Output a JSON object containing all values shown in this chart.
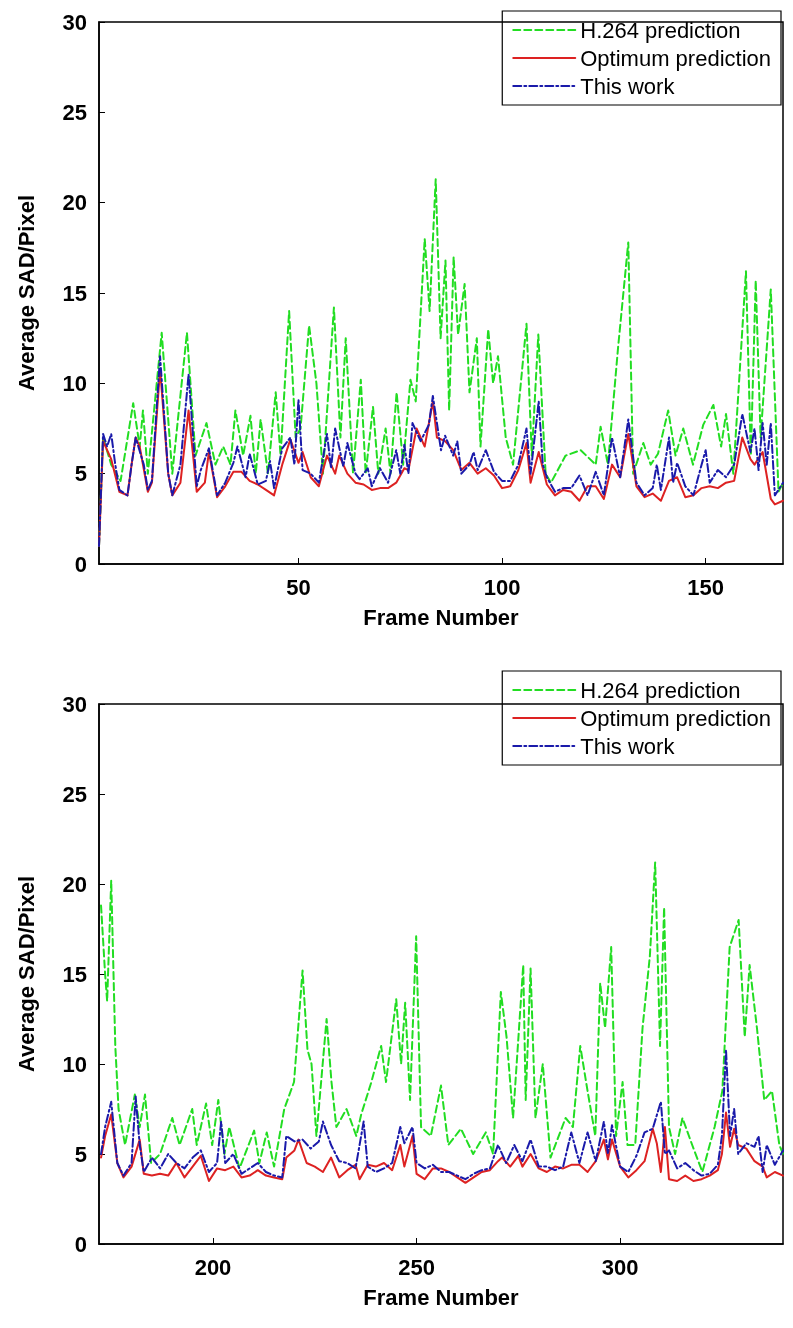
{
  "chart_data": [
    {
      "type": "line",
      "xlabel": "Frame Number",
      "ylabel": "Average SAD/Pixel",
      "xlim": [
        1,
        169
      ],
      "xticks": [
        50,
        100,
        150
      ],
      "ylim": [
        0,
        30
      ],
      "yticks": [
        0,
        5,
        10,
        15,
        20,
        25,
        30
      ],
      "grid": false,
      "legend": "top right",
      "marker": "none",
      "series": [
        {
          "name": "H.264 prediction",
          "color": "#22dd22",
          "line_style": "dashed",
          "x": [
            1,
            2,
            4,
            6.3,
            9.4,
            11,
            11.8,
            13,
            16.4,
            19,
            22.6,
            24.7,
            27.4,
            29.6,
            31.5,
            33.3,
            34.5,
            36.4,
            38.2,
            39.5,
            40.7,
            42.5,
            44.4,
            45.6,
            47.7,
            49.3,
            50.5,
            52.6,
            54.4,
            56,
            58.7,
            60.3,
            61.6,
            63.4,
            65.3,
            66.5,
            68.3,
            69.6,
            71.4,
            72.6,
            74.1,
            75.7,
            77.5,
            78.8,
            81,
            82.2,
            83.7,
            84.9,
            86.1,
            87,
            88.1,
            89.2,
            90.8,
            92,
            93.8,
            94.7,
            96.6,
            97.8,
            99,
            100.9,
            102.7,
            106,
            107.3,
            108.9,
            110.7,
            112,
            115.6,
            119.3,
            123,
            124.2,
            126,
            128.5,
            131,
            132.2,
            134.7,
            136.5,
            138.3,
            140.8,
            142.6,
            144.5,
            146.9,
            149.4,
            151.9,
            153.8,
            155,
            156.8,
            159.9,
            161.1,
            162.3,
            163.5,
            166,
            167.9,
            169
          ],
          "values": [
            1,
            7,
            5.5,
            4.6,
            8.9,
            6.5,
            8.5,
            5,
            12.8,
            5,
            12.8,
            6,
            7.8,
            5.5,
            6.5,
            5.5,
            8.5,
            6,
            8.2,
            5,
            8,
            5,
            9.5,
            6,
            14,
            7,
            7.5,
            13.2,
            10,
            5,
            14.2,
            7,
            12.5,
            5,
            10.2,
            5,
            8.7,
            5,
            7.5,
            5,
            9.5,
            5.5,
            10.2,
            9,
            18,
            14,
            21.3,
            12.5,
            16.8,
            8.5,
            17,
            12.7,
            15.5,
            9.5,
            12.5,
            6.5,
            13,
            10,
            11.5,
            7,
            5.5,
            13.3,
            6,
            12.7,
            5,
            4.5,
            6,
            6.3,
            5.5,
            7.6,
            5.5,
            12,
            17.8,
            5,
            6.7,
            5.5,
            6.1,
            8.5,
            6,
            7.5,
            5.5,
            7.7,
            8.8,
            6.5,
            8.3,
            5,
            16.2,
            6,
            15.7,
            7,
            15.2,
            4,
            4.5
          ]
        },
        {
          "name": "Optimum prediction",
          "color": "#dd2222",
          "line_style": "solid",
          "x": [
            1,
            2,
            4,
            6,
            8,
            9,
            10,
            11,
            13,
            14,
            16,
            18,
            19,
            21,
            23,
            25,
            27,
            28,
            30,
            32,
            34,
            36,
            38,
            40,
            42,
            44,
            46,
            48,
            50,
            51,
            53,
            55,
            57,
            59,
            60,
            62,
            64,
            66,
            68,
            70,
            72,
            74,
            76,
            77,
            79,
            81,
            83,
            84,
            86,
            88,
            90,
            92,
            94,
            96,
            98,
            100,
            102,
            104,
            106,
            107,
            109,
            111,
            113,
            115,
            117,
            119,
            121,
            123,
            125,
            127,
            129,
            131,
            133,
            135,
            137,
            139,
            141,
            143,
            145,
            147,
            149,
            151,
            153,
            155,
            157,
            159,
            161,
            162,
            164,
            166,
            167,
            169
          ],
          "values": [
            1,
            6.8,
            5.8,
            4,
            3.8,
            5.5,
            7,
            6.5,
            4,
            4.5,
            10.8,
            5,
            3.8,
            4.5,
            8.5,
            4,
            4.5,
            6.2,
            3.7,
            4.3,
            5.1,
            5.1,
            4.6,
            4.4,
            4.1,
            3.8,
            5.5,
            6.9,
            5.6,
            6.2,
            4.8,
            4.3,
            6,
            5,
            6,
            5,
            4.5,
            4.4,
            4.1,
            4.2,
            4.2,
            4.5,
            5.3,
            5.2,
            7.5,
            6.5,
            9,
            7,
            6.8,
            6.3,
            5.2,
            5.6,
            5,
            5.3,
            4.9,
            4.2,
            4.3,
            5.2,
            6.7,
            4.5,
            6.2,
            4.4,
            3.8,
            4.1,
            4,
            3.5,
            4.3,
            4.3,
            3.6,
            5.5,
            4.8,
            7.2,
            4.3,
            3.7,
            3.9,
            3.5,
            4.6,
            4.8,
            3.7,
            3.8,
            4.2,
            4.3,
            4.2,
            4.5,
            4.6,
            7,
            5.8,
            5.5,
            6.2,
            3.6,
            3.3,
            3.5
          ]
        },
        {
          "name": "This work",
          "color": "#1a1aaa",
          "line_style": "dashdot",
          "x": [
            1,
            2,
            3,
            4,
            5,
            6,
            8,
            9,
            10,
            12,
            13,
            14,
            16,
            18,
            19,
            21,
            23,
            25,
            26,
            28,
            30,
            32,
            34,
            35,
            37,
            38,
            40,
            42,
            43,
            44,
            46,
            48,
            49,
            50,
            51,
            53,
            55,
            57,
            58,
            59,
            61,
            62,
            64,
            65,
            67,
            68,
            70,
            72,
            74,
            75,
            76,
            77,
            78,
            80,
            82,
            83,
            85,
            86,
            88,
            89,
            90,
            92,
            93,
            94,
            96,
            98,
            100,
            102,
            104,
            106,
            107,
            109,
            110,
            111,
            113,
            115,
            117,
            119,
            121,
            123,
            125,
            127,
            129,
            131,
            133,
            135,
            137,
            138,
            139,
            141,
            142,
            143,
            145,
            147,
            149,
            150,
            151,
            153,
            155,
            157,
            159,
            161,
            162,
            163,
            164,
            165,
            166,
            167,
            169
          ],
          "values": [
            1,
            7.2,
            6.5,
            7.2,
            5.5,
            4.1,
            3.8,
            5.5,
            7,
            5.5,
            4.1,
            4.6,
            11.5,
            5,
            3.8,
            5.5,
            10.5,
            4.3,
            5.2,
            6.4,
            3.8,
            4.5,
            5.6,
            6.5,
            4.8,
            6.1,
            4.4,
            4.6,
            5.7,
            4.2,
            6.4,
            7,
            5.5,
            9.1,
            5.2,
            5,
            4.5,
            7.2,
            5.3,
            7.5,
            5.4,
            6.7,
            5,
            4.7,
            5.3,
            4.3,
            5.3,
            4.5,
            6.3,
            5,
            6.6,
            5,
            7.8,
            6.8,
            7.7,
            9.3,
            6.3,
            7.1,
            6,
            6.8,
            5,
            5.5,
            6.2,
            5.2,
            6.3,
            5.1,
            4.6,
            4.6,
            5.5,
            7.5,
            5,
            9,
            5.5,
            4.8,
            4,
            4.2,
            4.2,
            4.9,
            3.8,
            5.1,
            3.8,
            7,
            4.8,
            8,
            4.5,
            3.8,
            4.2,
            5.5,
            4.1,
            7,
            4.5,
            5.6,
            4.3,
            3.8,
            5.5,
            6.3,
            4.5,
            5.2,
            4.8,
            5.5,
            8.3,
            6.2,
            7.5,
            5.2,
            7.8,
            5.5,
            7.8,
            3.8,
            4.5
          ]
        }
      ]
    },
    {
      "type": "line",
      "xlabel": "Frame Number",
      "ylabel": "Average SAD/Pixel",
      "xlim": [
        172,
        340
      ],
      "xticks": [
        200,
        250,
        300
      ],
      "ylim": [
        0,
        30
      ],
      "yticks": [
        0,
        5,
        10,
        15,
        20,
        25,
        30
      ],
      "grid": false,
      "legend": "top right",
      "marker": "none",
      "series": [
        {
          "name": "H.264 prediction",
          "color": "#22dd22",
          "line_style": "dashed",
          "x": [
            172.5,
            173.5,
            174,
            175,
            176,
            176.8,
            178.4,
            180.8,
            182,
            183.3,
            184.8,
            187,
            190,
            191.8,
            194.9,
            196,
            198.3,
            199.8,
            201.3,
            202.8,
            204,
            206.5,
            210.1,
            211.4,
            213.2,
            215,
            217.5,
            219.9,
            222,
            223.2,
            224.2,
            225.4,
            227.9,
            229.1,
            230.3,
            232.8,
            235.2,
            236.4,
            238.9,
            241.3,
            242.5,
            245,
            246.2,
            247.2,
            248.4,
            249.9,
            251.1,
            253.5,
            256,
            257.8,
            260.9,
            263.9,
            267,
            268.8,
            270.7,
            272.1,
            273.7,
            276.2,
            276.8,
            278,
            279.2,
            281,
            282.9,
            286.6,
            288.4,
            290.2,
            292,
            293.9,
            295.1,
            296.3,
            297.8,
            299,
            300.6,
            301.8,
            303.7,
            305.5,
            307.3,
            308.6,
            309.8,
            310.8,
            312,
            313.5,
            315.3,
            317.7,
            320.2,
            323.2,
            325.1,
            326.9,
            329.1,
            330.6,
            331.8,
            333.6,
            335.4,
            337.3,
            339.1,
            340
          ],
          "values": [
            18.8,
            15,
            13.5,
            20.2,
            11,
            7.5,
            5.5,
            8.3,
            6.5,
            8.3,
            4.5,
            5,
            7,
            5.5,
            7.5,
            5.5,
            7.8,
            5.5,
            8,
            5,
            6.5,
            4.2,
            6.3,
            4.5,
            6.2,
            4.3,
            7.5,
            9,
            15.2,
            10.8,
            10,
            6,
            12.5,
            9,
            6.5,
            7.5,
            6,
            7.2,
            9,
            11,
            9,
            13.6,
            10,
            13.4,
            8,
            17.1,
            6.5,
            6,
            8.8,
            5.5,
            6.4,
            5,
            6.2,
            5,
            14,
            11.5,
            7,
            15.5,
            8,
            15.3,
            7,
            10,
            4.8,
            7,
            6.5,
            11,
            8.5,
            6,
            14.5,
            12,
            16.5,
            6,
            9,
            5.5,
            5.5,
            12,
            16,
            21.2,
            11,
            18.7,
            6.5,
            5,
            7,
            5.5,
            4,
            6.5,
            8.5,
            16.5,
            18,
            11.5,
            15.5,
            12,
            8,
            8.5,
            5.5,
            5
          ]
        },
        {
          "name": "Optimum prediction",
          "color": "#dd2222",
          "line_style": "solid",
          "x": [
            172.5,
            173.5,
            175,
            176.5,
            178,
            180,
            182,
            183,
            185,
            187,
            189,
            191,
            193,
            195,
            197,
            199,
            201,
            203,
            205,
            207,
            209,
            211,
            213,
            215,
            217,
            218,
            220,
            221,
            223,
            225,
            227,
            229,
            231,
            233,
            235,
            236,
            238,
            240,
            242,
            244,
            246,
            247,
            249,
            250,
            252,
            254,
            256,
            258,
            260,
            262,
            264,
            266,
            268,
            270,
            271,
            273,
            275,
            276,
            278,
            280,
            282,
            284,
            286,
            288,
            290,
            292,
            294,
            296,
            297,
            298,
            300,
            302,
            304,
            306,
            308,
            309,
            310,
            311,
            312,
            314,
            316,
            318,
            320,
            322,
            324,
            325,
            326,
            327,
            328,
            329,
            331,
            333,
            335,
            336,
            338,
            340
          ],
          "values": [
            4.8,
            6,
            7.2,
            4.5,
            3.7,
            4.3,
            5.8,
            3.9,
            3.8,
            3.9,
            3.8,
            4.5,
            3.7,
            4.3,
            4.9,
            3.5,
            4.2,
            4.1,
            4.3,
            3.7,
            3.8,
            4.1,
            3.8,
            3.7,
            3.6,
            4.8,
            5.2,
            5.8,
            4.5,
            4.3,
            4,
            4.8,
            3.7,
            4.1,
            4.4,
            3.6,
            4.4,
            4.3,
            4.5,
            4.1,
            5.5,
            4.3,
            6,
            3.9,
            3.6,
            4.2,
            4.2,
            4,
            3.7,
            3.4,
            3.7,
            4,
            4.1,
            4.6,
            4.8,
            4.3,
            4.9,
            4.3,
            5,
            4.2,
            4,
            4.3,
            4.2,
            4.4,
            4.4,
            4,
            4.6,
            5.8,
            4.7,
            5.8,
            4.3,
            3.7,
            4.1,
            4.6,
            6.4,
            5.6,
            4,
            6.5,
            3.6,
            3.5,
            3.8,
            3.5,
            3.6,
            3.8,
            4.1,
            5,
            7.3,
            5.4,
            6.4,
            5.5,
            5.3,
            4.6,
            4.3,
            3.7,
            4,
            3.8
          ]
        },
        {
          "name": "This work",
          "color": "#1a1aaa",
          "line_style": "dashdot",
          "x": [
            172.5,
            173.5,
            175,
            176.5,
            178,
            180,
            181,
            182,
            183,
            185,
            187,
            189,
            191,
            193,
            195,
            197,
            199,
            201,
            202,
            203,
            205,
            207,
            209,
            211,
            213,
            215,
            217,
            218,
            220,
            222,
            224,
            226,
            227,
            229,
            231,
            233,
            235,
            237,
            238,
            240,
            242,
            244,
            246,
            247,
            249,
            250,
            252,
            254,
            256,
            258,
            260,
            262,
            264,
            266,
            268,
            270,
            272,
            274,
            276,
            278,
            280,
            282,
            284,
            286,
            288,
            290,
            292,
            294,
            296,
            297,
            298,
            300,
            302,
            304,
            306,
            308,
            310,
            311,
            312,
            314,
            316,
            318,
            320,
            322,
            324,
            325,
            326,
            327,
            328,
            329,
            331,
            333,
            334,
            335,
            336,
            338,
            340
          ],
          "values": [
            5,
            6.5,
            7.9,
            4.5,
            3.8,
            4.5,
            8.2,
            5.5,
            4,
            4.8,
            4.2,
            5,
            4.5,
            4.2,
            4.8,
            5.2,
            4,
            4.5,
            6.8,
            4.5,
            5,
            3.9,
            4.2,
            4.5,
            4,
            3.8,
            3.7,
            6,
            5.7,
            5.8,
            5.3,
            5.7,
            6.8,
            5.5,
            4.6,
            4.5,
            4.2,
            6.8,
            4.3,
            4,
            4.2,
            4.5,
            6.5,
            5.6,
            6.5,
            4.5,
            4.2,
            4.4,
            4,
            4,
            3.8,
            3.6,
            3.9,
            4.1,
            4.2,
            5.5,
            4.5,
            5.5,
            4.6,
            5.8,
            4.3,
            4.3,
            4.1,
            4.3,
            6.2,
            4.5,
            6.2,
            4.6,
            6.8,
            5,
            6.6,
            4.3,
            4,
            4.9,
            6.2,
            6.4,
            7.9,
            5,
            5.2,
            4.2,
            4.5,
            4.1,
            3.8,
            3.9,
            4.4,
            6,
            10.8,
            6,
            7.5,
            5,
            5.6,
            5.4,
            6,
            4,
            5.5,
            4.4,
            5.2
          ]
        }
      ]
    }
  ]
}
